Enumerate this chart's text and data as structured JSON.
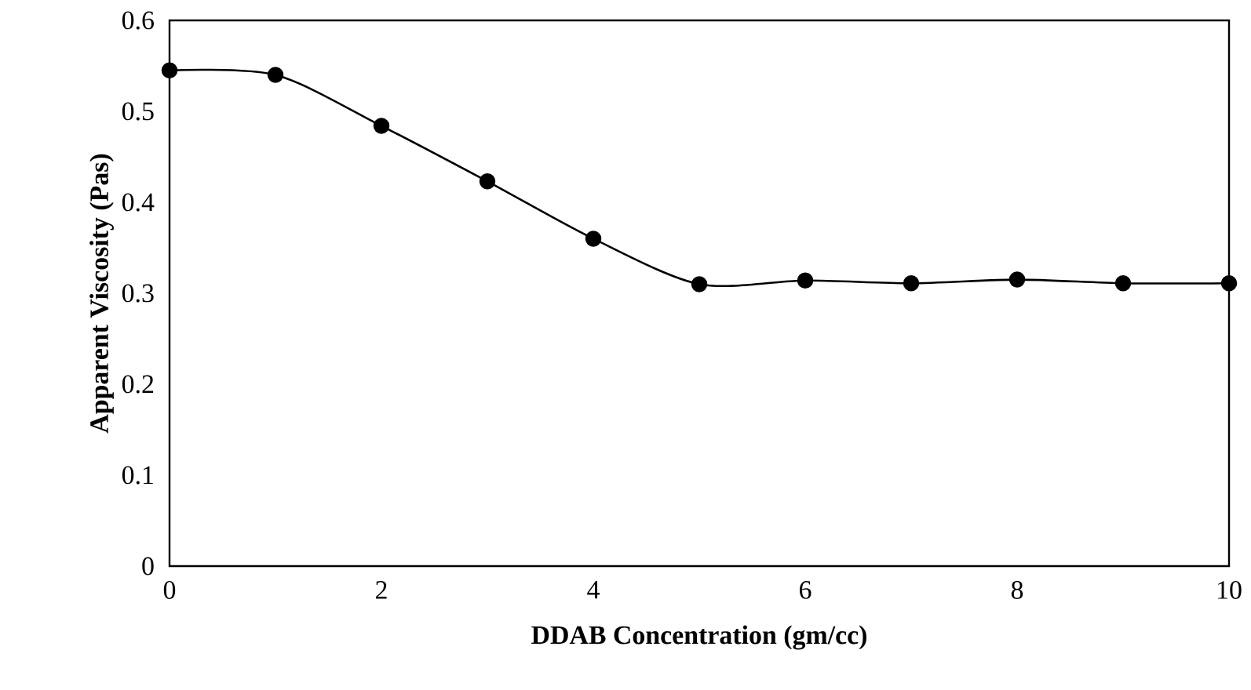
{
  "chart_data": {
    "type": "line",
    "xlabel": "DDAB Concentration (gm/cc)",
    "ylabel": "Apparent Viscosity (Pas)",
    "x": [
      0,
      1,
      2,
      3,
      4,
      5,
      6,
      7,
      8,
      9,
      10
    ],
    "series": [
      {
        "color": "#000000",
        "values": [
          0.545,
          0.54,
          0.484,
          0.423,
          0.36,
          0.31,
          0.314,
          0.311,
          0.315,
          0.311,
          0.311
        ]
      }
    ],
    "xlim": [
      0,
      10
    ],
    "xticks": [
      0,
      2,
      4,
      6,
      8,
      10
    ],
    "ylim": [
      0,
      0.6
    ],
    "yticks": [
      0,
      0.1,
      0.2,
      0.3,
      0.4,
      0.5,
      0.6
    ],
    "grid": false,
    "marker": "circle",
    "line_style": "solid"
  }
}
